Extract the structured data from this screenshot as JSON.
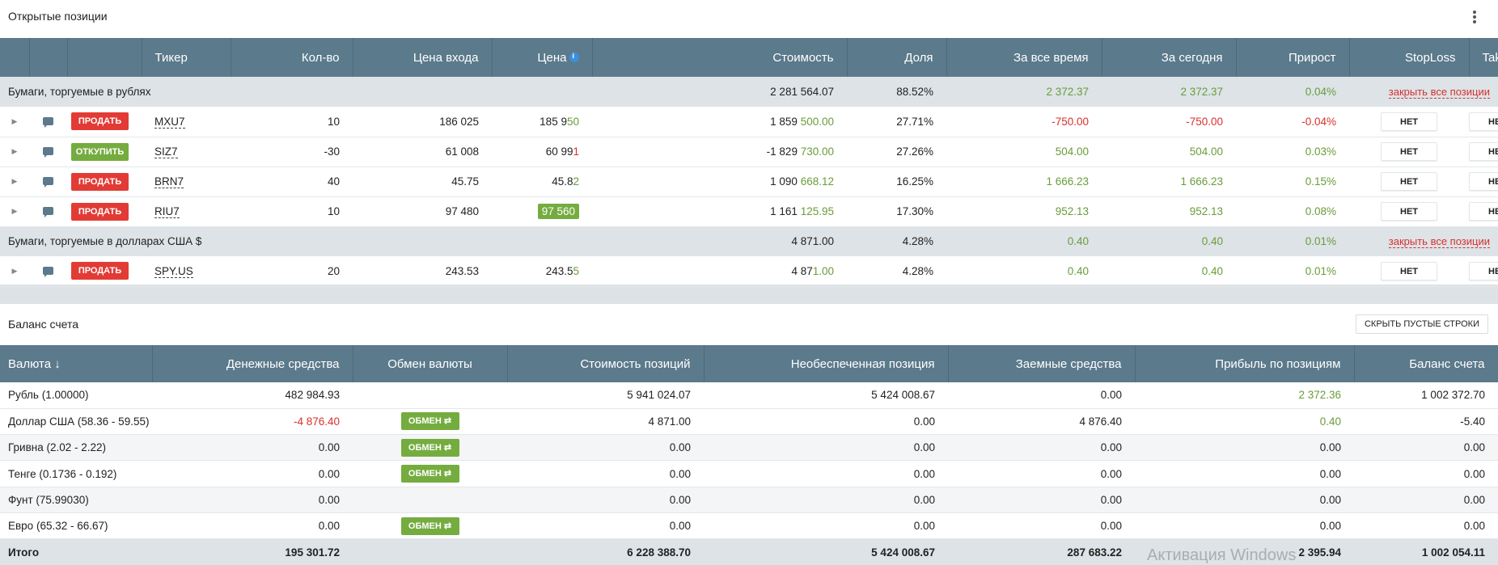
{
  "positions": {
    "title": "Открытые позиции",
    "headers": {
      "ticker": "Тикер",
      "qty": "Кол-во",
      "entry_price": "Цена входа",
      "price": "Цена",
      "value": "Стоимость",
      "share": "Доля",
      "all_time": "За все время",
      "today": "За сегодня",
      "growth": "Прирост",
      "stoploss": "StopLoss",
      "takeprofit": "TakeProfit"
    },
    "group_rub": {
      "label": "Бумаги, торгуемые в рублях",
      "value": "2 281 564.07",
      "share": "88.52%",
      "all_time": "2 372.37",
      "today": "2 372.37",
      "growth": "0.04%",
      "close_all": "закрыть все позиции"
    },
    "group_usd": {
      "label": "Бумаги, торгуемые в долларах США $",
      "value": "4 871.00",
      "share": "4.28%",
      "all_time": "0.40",
      "today": "0.40",
      "growth": "0.01%",
      "close_all": "закрыть все позиции"
    },
    "rows": [
      {
        "action": "ПРОДАТЬ",
        "ticker": "MXU7",
        "qty": "10",
        "entry": "186 025",
        "price_a": "185 9",
        "price_b": "50",
        "value_a": "1 859 ",
        "value_b": "500.00",
        "share": "27.71%",
        "all_time": "-750.00",
        "today": "-750.00",
        "growth": "-0.04%",
        "stoploss": "НЕТ",
        "takeprofit": "НЕТ"
      },
      {
        "action": "ОТКУПИТЬ",
        "ticker": "SIZ7",
        "qty": "-30",
        "entry": "61 008",
        "price_a": "60 99",
        "price_b": "1",
        "value_a": "-1 829 ",
        "value_b": "730.00",
        "share": "27.26%",
        "all_time": "504.00",
        "today": "504.00",
        "growth": "0.03%",
        "stoploss": "НЕТ",
        "takeprofit": "НЕТ"
      },
      {
        "action": "ПРОДАТЬ",
        "ticker": "BRN7",
        "qty": "40",
        "entry": "45.75",
        "price_a": "45.8",
        "price_b": "2",
        "value_a": "1 090 ",
        "value_b": "668.12",
        "share": "16.25%",
        "all_time": "1 666.23",
        "today": "1 666.23",
        "growth": "0.15%",
        "stoploss": "НЕТ",
        "takeprofit": "НЕТ"
      },
      {
        "action": "ПРОДАТЬ",
        "ticker": "RIU7",
        "qty": "10",
        "entry": "97 480",
        "price_full": "97 560",
        "value_a": "1 161 ",
        "value_b": "125.95",
        "share": "17.30%",
        "all_time": "952.13",
        "today": "952.13",
        "growth": "0.08%",
        "stoploss": "НЕТ",
        "takeprofit": "НЕТ"
      },
      {
        "action": "ПРОДАТЬ",
        "ticker": "SPY.US",
        "qty": "20",
        "entry": "243.53",
        "price_a": "243.5",
        "price_b": "5",
        "value_a": "4 87",
        "value_b": "1.00",
        "share": "4.28%",
        "all_time": "0.40",
        "today": "0.40",
        "growth": "0.01%",
        "stoploss": "НЕТ",
        "takeprofit": "НЕТ"
      }
    ]
  },
  "balance": {
    "title": "Баланс счета",
    "hide_empty": "СКРЫТЬ ПУСТЫЕ СТРОКИ",
    "headers": {
      "currency": "Валюта",
      "cash": "Денежные средства",
      "exchange": "Обмен валюты",
      "positions_value": "Стоимость позиций",
      "unsecured": "Необеспеченная позиция",
      "borrowed": "Заемные средства",
      "profit": "Прибыль по позициям",
      "account_balance": "Баланс счета"
    },
    "exchange_label": "ОБМЕН ⇄",
    "rows": [
      {
        "currency": "Рубль (1.00000)",
        "cash": "482 984.93",
        "positions_value": "5 941 024.07",
        "unsecured": "5 424 008.67",
        "borrowed": "0.00",
        "profit": "2 372.36",
        "balance": "1 002 372.70"
      },
      {
        "currency": "Доллар США (58.36 - 59.55)",
        "cash": "-4 876.40",
        "positions_value": "4 871.00",
        "unsecured": "0.00",
        "borrowed": "4 876.40",
        "profit": "0.40",
        "balance": "-5.40"
      },
      {
        "currency": "Гривна (2.02 - 2.22)",
        "cash": "0.00",
        "positions_value": "0.00",
        "unsecured": "0.00",
        "borrowed": "0.00",
        "profit": "0.00",
        "balance": "0.00"
      },
      {
        "currency": "Тенге (0.1736 - 0.192)",
        "cash": "0.00",
        "positions_value": "0.00",
        "unsecured": "0.00",
        "borrowed": "0.00",
        "profit": "0.00",
        "balance": "0.00"
      },
      {
        "currency": "Фунт (75.99030)",
        "cash": "0.00",
        "positions_value": "0.00",
        "unsecured": "0.00",
        "borrowed": "0.00",
        "profit": "0.00",
        "balance": "0.00"
      },
      {
        "currency": "Евро (65.32 - 66.67)",
        "cash": "0.00",
        "positions_value": "0.00",
        "unsecured": "0.00",
        "borrowed": "0.00",
        "profit": "0.00",
        "balance": "0.00"
      }
    ],
    "total": {
      "label": "Итого",
      "cash": "195 301.72",
      "positions_value": "6 228 388.70",
      "unsecured": "5 424 008.67",
      "borrowed": "287 683.22",
      "profit": "2 395.94",
      "balance": "1 002 054.11"
    }
  },
  "watermark": "Активация Windows",
  "colors": {
    "header_bg": "#5b7a8b",
    "positive": "#6a9c3a",
    "negative": "#d9302e",
    "sell": "#e23b35",
    "buy": "#75ac3f",
    "group_bg": "#dde3e7"
  }
}
